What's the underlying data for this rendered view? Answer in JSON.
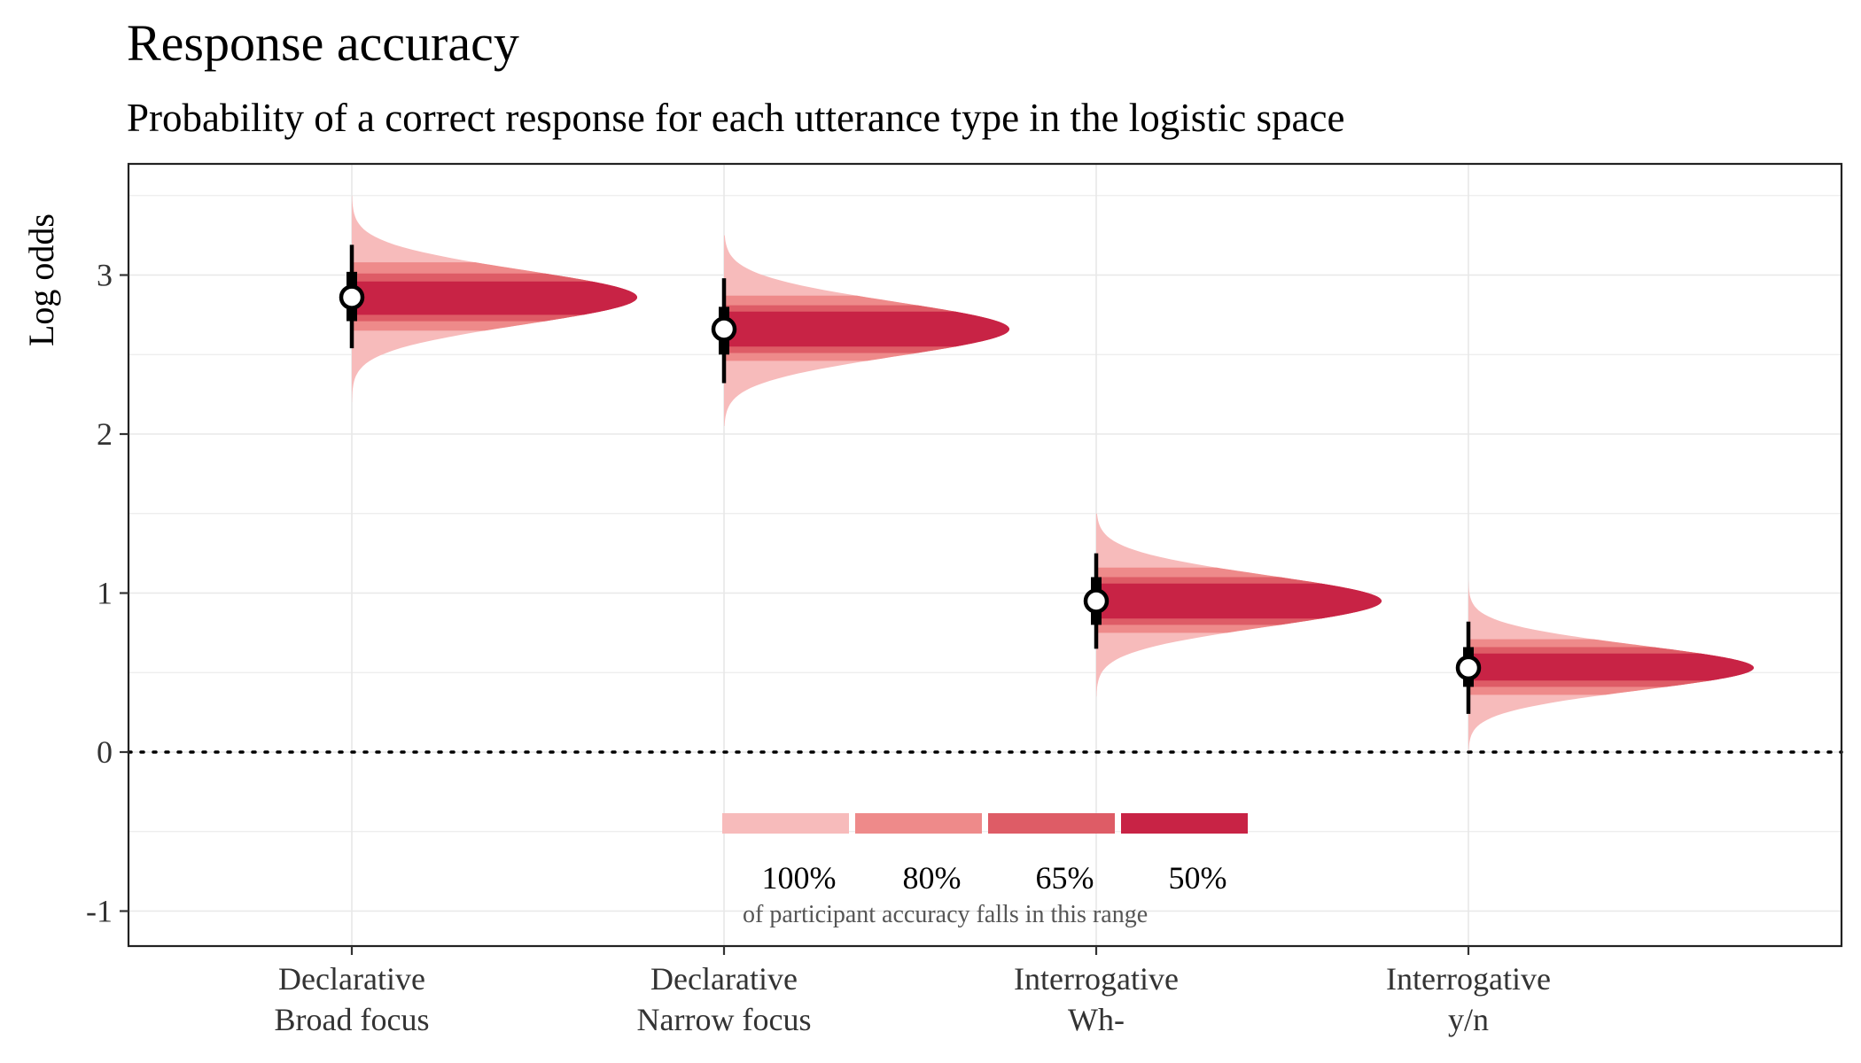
{
  "chart_data": {
    "type": "slab-interval",
    "title": "Response accuracy",
    "subtitle": "Probability of a correct response for each utterance type in the logistic space",
    "xlabel": "",
    "ylabel": "Log odds",
    "ylim": [
      -1.25,
      3.7
    ],
    "yticks": [
      -1,
      0,
      1,
      2,
      3
    ],
    "ytick_labels": [
      "-1",
      "0",
      "1",
      "2",
      "3"
    ],
    "reference_line": {
      "y": 0,
      "style": "dotted"
    },
    "grid": true,
    "categories": [
      {
        "line1": "Declarative",
        "line2": "Broad focus"
      },
      {
        "line1": "Declarative",
        "line2": "Narrow focus"
      },
      {
        "line1": "Interrogative",
        "line2": "Wh-"
      },
      {
        "line1": "Interrogative",
        "line2": "y/n"
      }
    ],
    "distributions": [
      {
        "median": 2.86,
        "sd": 0.17,
        "interval_66": [
          2.71,
          3.02
        ],
        "interval_95": [
          2.54,
          3.19
        ],
        "range": [
          2.2,
          3.5
        ],
        "bands": {
          "100": [
            2.2,
            3.5
          ],
          "80": [
            2.65,
            3.08
          ],
          "65": [
            2.71,
            3.01
          ],
          "50": [
            2.75,
            2.96
          ]
        }
      },
      {
        "median": 2.66,
        "sd": 0.17,
        "interval_66": [
          2.5,
          2.8
        ],
        "interval_95": [
          2.32,
          2.98
        ],
        "range": [
          2.05,
          3.25
        ],
        "bands": {
          "100": [
            2.05,
            3.25
          ],
          "80": [
            2.46,
            2.87
          ],
          "65": [
            2.51,
            2.81
          ],
          "50": [
            2.55,
            2.77
          ]
        }
      },
      {
        "median": 0.95,
        "sd": 0.16,
        "interval_66": [
          0.8,
          1.1
        ],
        "interval_95": [
          0.65,
          1.25
        ],
        "range": [
          0.35,
          1.5
        ],
        "bands": {
          "100": [
            0.35,
            1.5
          ],
          "80": [
            0.75,
            1.16
          ],
          "65": [
            0.8,
            1.1
          ],
          "50": [
            0.84,
            1.06
          ]
        }
      },
      {
        "median": 0.53,
        "sd": 0.14,
        "interval_66": [
          0.41,
          0.66
        ],
        "interval_95": [
          0.24,
          0.82
        ],
        "range": [
          0.0,
          1.08
        ],
        "bands": {
          "100": [
            0.0,
            1.08
          ],
          "80": [
            0.36,
            0.71
          ],
          "65": [
            0.41,
            0.66
          ],
          "50": [
            0.45,
            0.62
          ]
        }
      }
    ],
    "legend": {
      "items": [
        {
          "label": "100%",
          "color": "#f7bbbb"
        },
        {
          "label": "80%",
          "color": "#ee8a8a"
        },
        {
          "label": "65%",
          "color": "#de5c66"
        },
        {
          "label": "50%",
          "color": "#c82345"
        }
      ],
      "note": "of participant accuracy falls in this range"
    },
    "point_color": "#ffffff",
    "interval_color": "#000000"
  }
}
